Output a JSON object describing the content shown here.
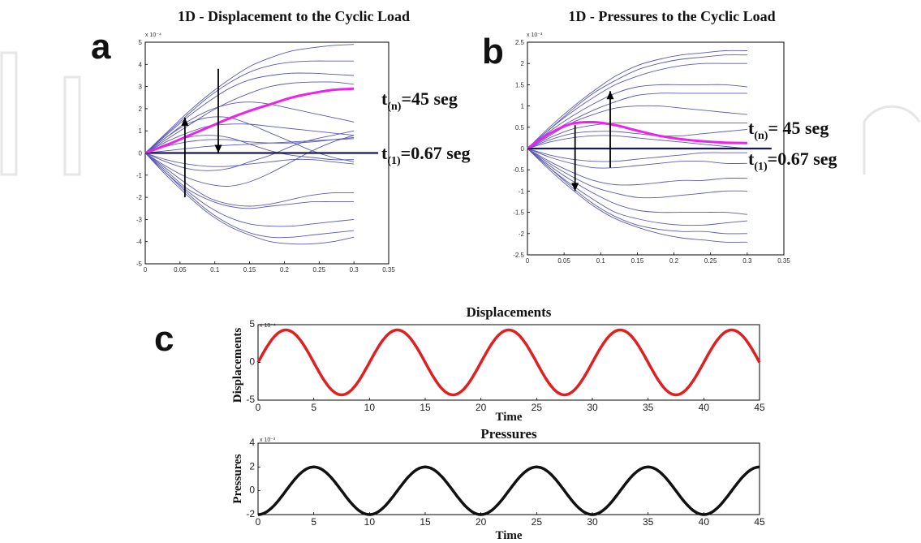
{
  "chart_data": [
    {
      "panel": "a",
      "type": "line",
      "title": "1D - Displacement to the Cyclic Load",
      "exponent": "x 10⁻⁴",
      "xlim": [
        0,
        0.35
      ],
      "ylim": [
        -5,
        5
      ],
      "xticks": [
        "0",
        "0.05",
        "0.1",
        "0.15",
        "0.2",
        "0.25",
        "0.3",
        "0.35"
      ],
      "yticks": [
        "5",
        "4",
        "3",
        "2",
        "1",
        "0",
        "-1",
        "-2",
        "-3",
        "-4",
        "-5"
      ],
      "x": [
        0,
        0.03,
        0.06,
        0.09,
        0.12,
        0.15,
        0.18,
        0.21,
        0.24,
        0.27,
        0.3
      ],
      "series": [
        {
          "values": [
            0,
            0.9,
            1.8,
            2.6,
            3.3,
            3.9,
            4.3,
            4.6,
            4.75,
            4.85,
            4.9
          ]
        },
        {
          "values": [
            0,
            0.85,
            1.7,
            2.5,
            3.15,
            3.65,
            3.95,
            4.1,
            4.15,
            4.15,
            4.15
          ]
        },
        {
          "values": [
            0,
            0.8,
            1.6,
            2.3,
            2.9,
            3.3,
            3.5,
            3.6,
            3.6,
            3.55,
            3.5
          ]
        },
        {
          "values": [
            0,
            0.6,
            1.2,
            1.8,
            2.3,
            2.7,
            3.0,
            3.15,
            3.2,
            3.2,
            3.1
          ]
        },
        {
          "values": [
            0,
            0.7,
            1.4,
            1.9,
            2.2,
            2.3,
            2.2,
            2.0,
            1.8,
            1.6,
            1.4
          ]
        },
        {
          "values": [
            0,
            0.5,
            0.9,
            1.2,
            1.3,
            1.3,
            1.2,
            1.1,
            1.0,
            0.9,
            0.8
          ]
        },
        {
          "values": [
            0,
            0.7,
            1.3,
            1.6,
            1.6,
            1.3,
            0.9,
            0.5,
            0.1,
            -0.2,
            -0.4
          ]
        },
        {
          "values": [
            0,
            0.3,
            0.5,
            0.6,
            0.6,
            0.5,
            0.45,
            0.45,
            0.5,
            0.6,
            0.7
          ]
        },
        {
          "values": [
            0,
            0.4,
            0.7,
            0.8,
            0.7,
            0.4,
            0.1,
            -0.1,
            -0.2,
            -0.3,
            -0.3
          ]
        },
        {
          "values": [
            0,
            -0.4,
            -0.7,
            -0.8,
            -0.7,
            -0.4,
            -0.1,
            0.3,
            0.6,
            0.8,
            1.0
          ]
        },
        {
          "values": [
            0,
            -0.3,
            -0.5,
            -0.6,
            -0.6,
            -0.5,
            -0.4,
            -0.3,
            -0.3,
            -0.4,
            -0.5
          ]
        },
        {
          "values": [
            0,
            -0.6,
            -1.1,
            -1.4,
            -1.5,
            -1.3,
            -0.9,
            -0.4,
            0.1,
            0.5,
            0.8
          ]
        },
        {
          "values": [
            0,
            -0.7,
            -1.4,
            -2.0,
            -2.3,
            -2.4,
            -2.3,
            -2.1,
            -1.9,
            -1.8,
            -1.8
          ]
        },
        {
          "values": [
            0,
            -0.8,
            -1.6,
            -2.1,
            -2.4,
            -2.5,
            -2.4,
            -2.3,
            -2.2,
            -2.2,
            -2.2
          ]
        },
        {
          "values": [
            0,
            -0.9,
            -1.7,
            -2.4,
            -2.9,
            -3.2,
            -3.3,
            -3.3,
            -3.2,
            -3.1,
            -3.0
          ]
        },
        {
          "values": [
            0,
            -0.9,
            -1.8,
            -2.6,
            -3.2,
            -3.6,
            -3.8,
            -3.8,
            -3.7,
            -3.6,
            -3.5
          ]
        },
        {
          "values": [
            0,
            -1.0,
            -1.9,
            -2.7,
            -3.3,
            -3.7,
            -4.0,
            -4.1,
            -4.1,
            -4.0,
            -3.8
          ]
        },
        {
          "values": [
            0,
            0.1,
            0.2,
            0.3,
            0.35,
            0.4,
            0.45,
            0.5,
            0.55,
            0.6,
            0.65
          ]
        }
      ],
      "highlight": {
        "values": [
          0,
          0.35,
          0.75,
          1.15,
          1.55,
          1.9,
          2.2,
          2.5,
          2.7,
          2.85,
          2.9
        ]
      },
      "baseline": {
        "values": [
          0,
          0,
          0,
          0,
          0,
          0,
          0,
          0,
          0,
          0,
          0
        ]
      },
      "arrows": [
        {
          "x": 0.057,
          "from": -2.0,
          "to": 1.6
        },
        {
          "x": 0.105,
          "from": 3.8,
          "to": 0.0
        }
      ],
      "annotations": [
        {
          "text": "t",
          "sub": "(n)",
          "rest": "=45 seg"
        },
        {
          "text": "t",
          "sub": "(1)",
          "rest": "=0.67 seg"
        }
      ]
    },
    {
      "panel": "b",
      "type": "line",
      "title": "1D - Pressures to the Cyclic Load",
      "exponent": "x 10⁻³",
      "xlim": [
        0,
        0.35
      ],
      "ylim": [
        -2.5,
        2.5
      ],
      "xticks": [
        "0",
        "0.05",
        "0.1",
        "0.15",
        "0.2",
        "0.25",
        "0.3",
        "0.35"
      ],
      "yticks": [
        "2.5",
        "2",
        "1.5",
        "1",
        "0.5",
        "0",
        "-0.5",
        "-1",
        "-1.5",
        "-2",
        "-2.5"
      ],
      "x": [
        0,
        0.03,
        0.06,
        0.09,
        0.12,
        0.15,
        0.18,
        0.21,
        0.24,
        0.27,
        0.3
      ],
      "series": [
        {
          "values": [
            0,
            0.5,
            0.95,
            1.35,
            1.7,
            1.95,
            2.1,
            2.2,
            2.25,
            2.3,
            2.3
          ]
        },
        {
          "values": [
            0,
            0.45,
            0.9,
            1.3,
            1.6,
            1.85,
            2.0,
            2.1,
            2.15,
            2.2,
            2.2
          ]
        },
        {
          "values": [
            0,
            0.45,
            0.85,
            1.2,
            1.5,
            1.7,
            1.85,
            1.95,
            2.0,
            2.0,
            2.0
          ]
        },
        {
          "values": [
            0,
            0.4,
            0.75,
            1.05,
            1.3,
            1.45,
            1.5,
            1.5,
            1.5,
            1.5,
            1.45
          ]
        },
        {
          "values": [
            0,
            0.35,
            0.65,
            0.9,
            1.1,
            1.25,
            1.3,
            1.3,
            1.3,
            1.3,
            1.3
          ]
        },
        {
          "values": [
            0,
            0.3,
            0.6,
            0.8,
            0.95,
            1.0,
            1.0,
            0.95,
            0.9,
            0.85,
            0.8
          ]
        },
        {
          "values": [
            0,
            0.25,
            0.45,
            0.55,
            0.6,
            0.6,
            0.6,
            0.6,
            0.6,
            0.6,
            0.6
          ]
        },
        {
          "values": [
            0,
            0.2,
            0.35,
            0.4,
            0.4,
            0.35,
            0.3,
            0.3,
            0.35,
            0.4,
            0.45
          ]
        },
        {
          "values": [
            0,
            0.15,
            0.25,
            0.3,
            0.3,
            0.25,
            0.2,
            0.15,
            0.1,
            0.05,
            0.0
          ]
        },
        {
          "values": [
            0,
            -0.15,
            -0.25,
            -0.3,
            -0.3,
            -0.25,
            -0.2,
            -0.15,
            -0.1,
            -0.1,
            -0.1
          ]
        },
        {
          "values": [
            0,
            -0.2,
            -0.35,
            -0.45,
            -0.45,
            -0.4,
            -0.35,
            -0.3,
            -0.3,
            -0.35,
            -0.35
          ]
        },
        {
          "values": [
            0,
            -0.3,
            -0.55,
            -0.75,
            -0.85,
            -0.85,
            -0.8,
            -0.75,
            -0.75,
            -0.7,
            -0.7
          ]
        },
        {
          "values": [
            0,
            -0.35,
            -0.65,
            -0.9,
            -1.05,
            -1.15,
            -1.15,
            -1.1,
            -1.05,
            -1.0,
            -1.0
          ]
        },
        {
          "values": [
            0,
            -0.4,
            -0.75,
            -1.05,
            -1.3,
            -1.45,
            -1.5,
            -1.5,
            -1.5,
            -1.5,
            -1.55
          ]
        },
        {
          "values": [
            0,
            -0.45,
            -0.85,
            -1.2,
            -1.5,
            -1.65,
            -1.75,
            -1.8,
            -1.8,
            -1.75,
            -1.7
          ]
        },
        {
          "values": [
            0,
            -0.45,
            -0.9,
            -1.3,
            -1.6,
            -1.8,
            -1.9,
            -1.95,
            -1.95,
            -2.0,
            -2.0
          ]
        },
        {
          "values": [
            0,
            -0.5,
            -0.95,
            -1.35,
            -1.65,
            -1.85,
            -2.0,
            -2.1,
            -2.15,
            -2.2,
            -2.2
          ]
        }
      ],
      "highlight": {
        "values": [
          0,
          0.35,
          0.58,
          0.62,
          0.55,
          0.42,
          0.3,
          0.22,
          0.17,
          0.14,
          0.13
        ]
      },
      "baseline": {
        "values": [
          0,
          0,
          0,
          0,
          0,
          0,
          0,
          0,
          0,
          0,
          0
        ]
      },
      "arrows": [
        {
          "x": 0.113,
          "from": -0.45,
          "to": 1.35
        },
        {
          "x": 0.065,
          "from": 0.55,
          "to": -1.0
        }
      ],
      "annotations": [
        {
          "text": "t",
          "sub": "(n)",
          "rest": "= 45 seg"
        },
        {
          "text": "t",
          "sub": "(1)",
          "rest": "=0.67 seg"
        }
      ]
    },
    {
      "panel": "c-top",
      "type": "line",
      "title": "Displacements",
      "xlabel": "Time",
      "ylabel": "Displacements",
      "exponent": "x 10⁻⁴",
      "xlim": [
        0,
        45
      ],
      "ylim": [
        -5,
        5
      ],
      "xticks": [
        "0",
        "5",
        "10",
        "15",
        "20",
        "25",
        "30",
        "35",
        "40",
        "45"
      ],
      "yticks": [
        "5",
        "0",
        "-5"
      ],
      "amplitude": 4.3,
      "period": 10,
      "phase_deg": 0,
      "color": "#e02020"
    },
    {
      "panel": "c-bottom",
      "type": "line",
      "title": "Pressures",
      "xlabel": "Time",
      "ylabel": "Pressures",
      "exponent": "x 10⁻³",
      "xlim": [
        0,
        45
      ],
      "ylim": [
        -2,
        4
      ],
      "xticks": [
        "0",
        "5",
        "10",
        "15",
        "20",
        "25",
        "30",
        "35",
        "40",
        "45"
      ],
      "yticks": [
        "4",
        "2",
        "0",
        "-2"
      ],
      "amplitude": 2.0,
      "period": 10,
      "phase_deg": 90,
      "color": "#111111"
    }
  ],
  "labels": {
    "a": "a",
    "b": "b",
    "c": "c"
  },
  "colors": {
    "series": "#5a5ab4",
    "highlight": "#ee22ee",
    "baseline": "#1a1a50",
    "arrow": "#000000"
  }
}
